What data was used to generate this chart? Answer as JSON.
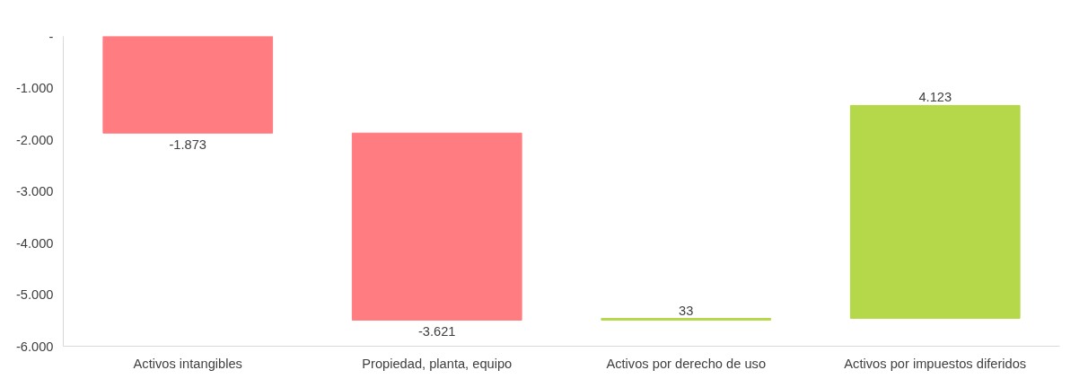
{
  "chart_data": {
    "type": "bar",
    "categories": [
      "Activos intangibles",
      "Propiedad, planta, equipo",
      "Activos por derecho de uso",
      "Activos por impuestos diferidos"
    ],
    "values": [
      -1873,
      -3621,
      33,
      4123
    ],
    "base": [
      0,
      -1873,
      -5494,
      -5461
    ],
    "colors": [
      "#ff7c80",
      "#ff7c80",
      "#b4d84a",
      "#b4d84a"
    ],
    "value_labels": [
      "-1.873",
      "-3.621",
      "33",
      "4.123"
    ],
    "ylim": [
      -6000,
      0
    ],
    "yticks": [
      {
        "value": 0,
        "label": "-"
      },
      {
        "value": -1000,
        "label": "-1.000"
      },
      {
        "value": -2000,
        "label": "-2.000"
      },
      {
        "value": -3000,
        "label": "-3.000"
      },
      {
        "value": -4000,
        "label": "-4.000"
      },
      {
        "value": -5000,
        "label": "-5.000"
      },
      {
        "value": -6000,
        "label": "-6.000"
      }
    ],
    "grid": false
  }
}
